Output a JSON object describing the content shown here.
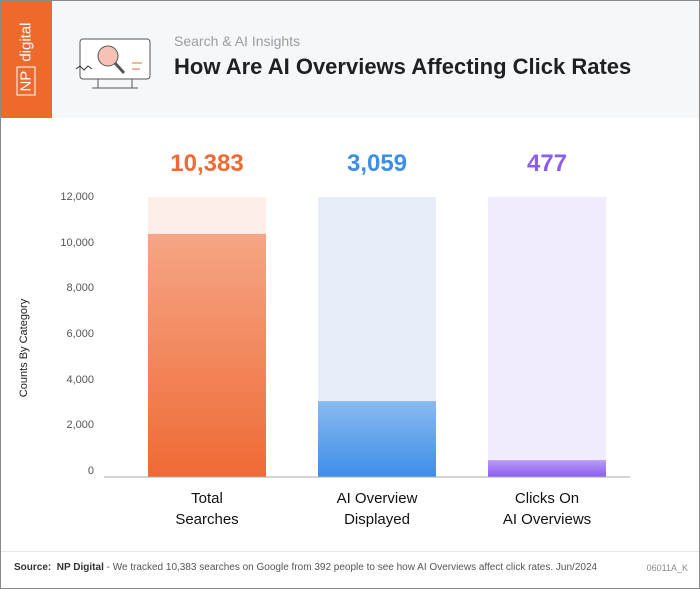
{
  "logo": {
    "text": "NP digital",
    "np": "NP",
    "digital": "digital"
  },
  "header": {
    "subtitle": "Search & AI Insights",
    "title": "How Are AI Overviews Affecting Click Rates"
  },
  "chart_data": {
    "type": "bar",
    "categories": [
      "Total Searches",
      "AI Overview Displayed",
      "Clicks On AI Overviews"
    ],
    "category_lines": [
      [
        "Total",
        "Searches"
      ],
      [
        "AI Overview",
        "Displayed"
      ],
      [
        "Clicks On",
        "AI Overviews"
      ]
    ],
    "values": [
      10383,
      3059,
      477
    ],
    "value_labels": [
      "10,383",
      "3,059",
      "477"
    ],
    "colors": [
      "#ef6a35",
      "#3d8ee8",
      "#8b5cf0"
    ],
    "background_colors": [
      "#fdeee8",
      "#e8eef9",
      "#f1ecfd"
    ],
    "ylabel": "Counts By Category",
    "ylim": [
      0,
      12000
    ],
    "yticks": [
      0,
      2000,
      4000,
      6000,
      8000,
      10000,
      12000
    ],
    "ytick_labels": [
      "0",
      "2,000",
      "4,000",
      "6,000",
      "8,000",
      "10,000",
      "12,000"
    ],
    "grid": false
  },
  "footer": {
    "source_label": "Source:",
    "source_name": "NP Digital",
    "source_text": " - We tracked 10,383 searches on Google from 392 people to see how AI Overviews affect click rates. Jun/2024",
    "code": "06011A_K"
  }
}
